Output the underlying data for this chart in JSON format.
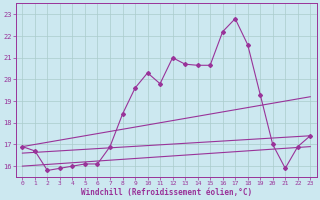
{
  "title": "",
  "xlabel": "Windchill (Refroidissement éolien,°C)",
  "ylabel": "",
  "background_color": "#cce8f0",
  "line_color": "#993399",
  "grid_color": "#aacccc",
  "xlim": [
    -0.5,
    23.5
  ],
  "ylim": [
    15.5,
    23.5
  ],
  "yticks": [
    16,
    17,
    18,
    19,
    20,
    21,
    22,
    23
  ],
  "xticks": [
    0,
    1,
    2,
    3,
    4,
    5,
    6,
    7,
    8,
    9,
    10,
    11,
    12,
    13,
    14,
    15,
    16,
    17,
    18,
    19,
    20,
    21,
    22,
    23
  ],
  "series_jagged": {
    "x": [
      0,
      1,
      2,
      3,
      4,
      5,
      6,
      7,
      8,
      9,
      10,
      11,
      12,
      13,
      14,
      15,
      16,
      17,
      18,
      19,
      20,
      21,
      22,
      23
    ],
    "y": [
      16.9,
      16.7,
      15.8,
      15.9,
      16.0,
      16.1,
      16.1,
      16.9,
      18.4,
      19.6,
      20.3,
      19.8,
      21.0,
      20.7,
      20.65,
      20.65,
      22.2,
      22.8,
      21.6,
      19.3,
      17.0,
      15.9,
      16.9,
      17.4
    ]
  },
  "series_diagonal1": {
    "x": [
      0,
      23
    ],
    "y": [
      16.9,
      19.2
    ]
  },
  "series_diagonal2": {
    "x": [
      0,
      23
    ],
    "y": [
      16.6,
      17.4
    ]
  },
  "series_diagonal3": {
    "x": [
      0,
      23
    ],
    "y": [
      16.0,
      16.9
    ]
  }
}
